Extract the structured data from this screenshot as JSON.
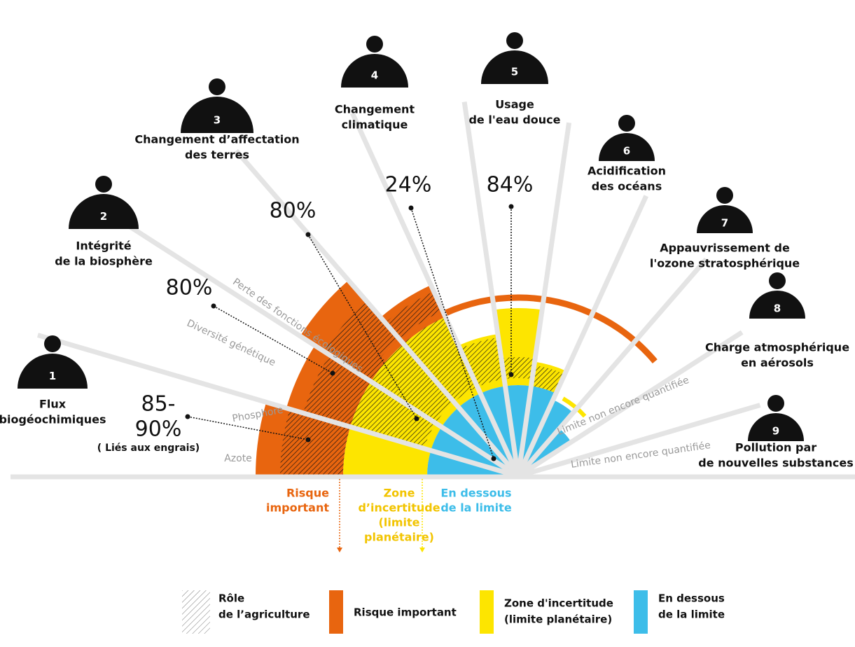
{
  "boundaries": [
    {
      "number": "1",
      "lines": [
        "Flux",
        "biogéochimiques"
      ]
    },
    {
      "number": "2",
      "lines": [
        "Intégrité",
        "de la biosphère"
      ]
    },
    {
      "number": "3",
      "lines": [
        "Changement d’affectation",
        "des terres"
      ]
    },
    {
      "number": "4",
      "lines": [
        "Changement",
        "climatique"
      ]
    },
    {
      "number": "5",
      "lines": [
        "Usage",
        "de l'eau douce"
      ]
    },
    {
      "number": "6",
      "lines": [
        "Acidification",
        "des océans"
      ]
    },
    {
      "number": "7",
      "lines": [
        "Appauvrissement de",
        "l'ozone stratosphérique"
      ]
    },
    {
      "number": "8",
      "lines": [
        "Charge atmosphérique",
        "en  aérosols"
      ]
    },
    {
      "number": "9",
      "lines": [
        "Pollution par",
        "de nouvelles substances"
      ]
    }
  ],
  "segment_labels": [
    "Azote",
    "Phosphore",
    "Diversité génétique",
    "Perte des fonctions écologiques",
    "Limite non encore quantifiée",
    "Limite non encore quantifiée"
  ],
  "agriculture_shares": [
    {
      "lines": [
        "85-",
        "90%"
      ],
      "note": "( Liés aux engrais)"
    },
    {
      "lines": [
        "80%"
      ]
    },
    {
      "lines": [
        "80%"
      ]
    },
    {
      "lines": [
        "24%"
      ]
    },
    {
      "lines": [
        "84%"
      ]
    }
  ],
  "zones": [
    {
      "lines": [
        "Risque",
        "important"
      ]
    },
    {
      "lines": [
        "Zone",
        "d’incertitude",
        "(limite",
        "planétaire)"
      ]
    },
    {
      "lines": [
        "En dessous",
        "de la limite"
      ]
    }
  ],
  "legend": [
    {
      "lines": [
        "Rôle",
        "de l’agriculture"
      ]
    },
    {
      "lines": [
        "Risque important"
      ]
    },
    {
      "lines": [
        "Zone d'incertitude",
        "(limite planétaire)"
      ]
    },
    {
      "lines": [
        "En dessous",
        "de la limite"
      ]
    }
  ]
}
